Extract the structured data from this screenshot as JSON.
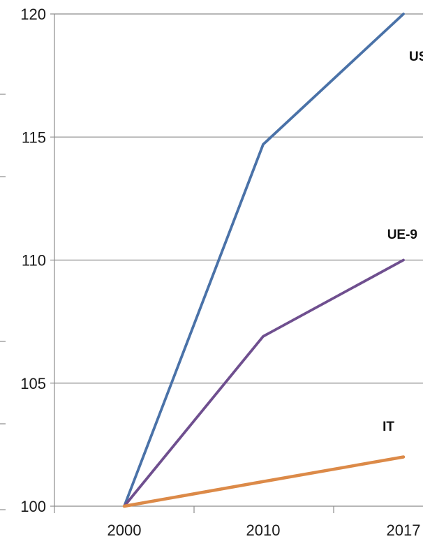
{
  "chart_data": {
    "type": "line",
    "title": "",
    "xlabel": "",
    "ylabel": "",
    "x": [
      2000,
      2010,
      2017
    ],
    "x_tick_labels": [
      "2000",
      "2010",
      "2017"
    ],
    "y_tick_labels": [
      "100",
      "105",
      "110",
      "115",
      "120"
    ],
    "ylim": [
      100,
      120
    ],
    "grid": "horizontal",
    "legend": "none",
    "series": [
      {
        "name": "US",
        "values": [
          100,
          114.7,
          120
        ],
        "color": "#4a72a8"
      },
      {
        "name": "UE-9",
        "values": [
          100,
          106.9,
          110
        ],
        "color": "#6f4f8f"
      },
      {
        "name": "IT",
        "values": [
          100,
          101,
          102
        ],
        "color": "#dc8a48"
      }
    ]
  }
}
